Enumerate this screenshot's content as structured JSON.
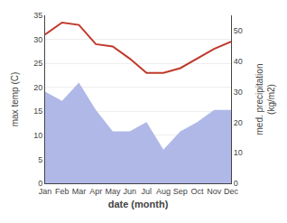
{
  "chart_data": {
    "type": "line",
    "categories": [
      "Jan",
      "Feb",
      "Mar",
      "Apr",
      "May",
      "Jun",
      "Jul",
      "Aug",
      "Sep",
      "Oct",
      "Nov",
      "Dec"
    ],
    "xlabel": "date (month)",
    "ylabel": "max temp (C)",
    "y2label": "med. precipitation\n(kg/m2)",
    "series": [
      {
        "type": "area",
        "color": "#b0b8e8",
        "axis": "y2",
        "values": [
          30,
          27,
          33,
          24,
          17,
          17,
          20,
          11,
          17,
          20,
          24,
          24
        ]
      },
      {
        "type": "line",
        "color": "#c0392b",
        "values": [
          31,
          33.5,
          33,
          29,
          28.5,
          26,
          23,
          23,
          24,
          26,
          28,
          29.5
        ]
      }
    ],
    "ylim": [
      0,
      35
    ],
    "yticks": [
      0,
      5,
      10,
      15,
      20,
      25,
      30,
      35
    ],
    "y2lim": [
      0,
      55
    ],
    "y2ticks": [
      0,
      10,
      20,
      30,
      40,
      50
    ],
    "grid": true
  }
}
